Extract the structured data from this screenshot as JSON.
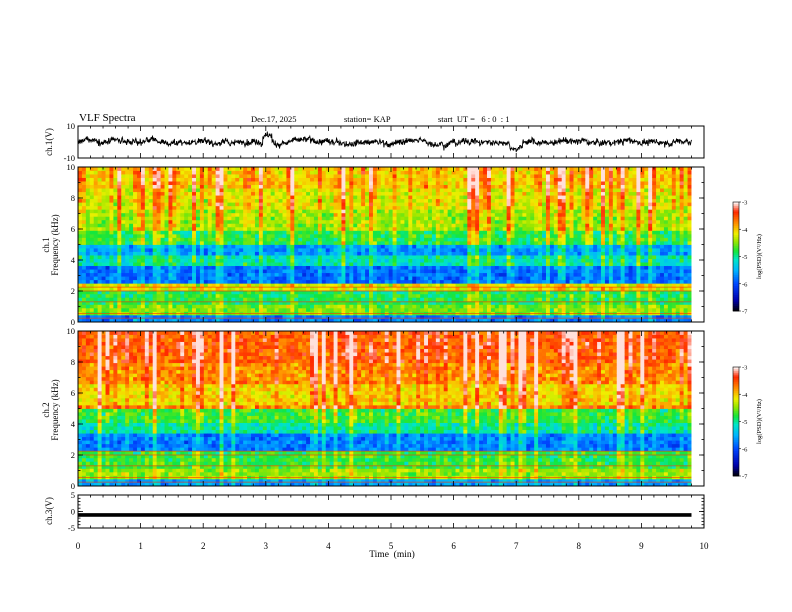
{
  "header": {
    "title": "VLF Spectra",
    "date": "Dec.17, 2025",
    "station": "station= KAP",
    "start": "start  UT =   6 : 0  : 1"
  },
  "colors": {
    "scale": [
      "#000000",
      "#0000aa",
      "#0044ff",
      "#00b4ff",
      "#00e6c8",
      "#10e640",
      "#9ee600",
      "#f0f000",
      "#ff9000",
      "#ff2000",
      "#ffffff"
    ]
  },
  "chart_data": [
    {
      "type": "line",
      "name": "ch1-waveform",
      "ylabel": "ch.1(V)",
      "ylim": [
        -10,
        10
      ],
      "yticks": [
        "10",
        "-10"
      ],
      "xlim": [
        0,
        10
      ],
      "note": "dense noisy voltage trace spanning roughly 0 to 9.8 min"
    },
    {
      "type": "heatmap",
      "name": "ch1-spectrogram",
      "ylabel": "Frequency  (kHz)",
      "channel_label": "ch.1",
      "ylim": [
        0,
        10
      ],
      "yticks": [
        "0",
        "2",
        "4",
        "6",
        "8",
        "10"
      ],
      "xlim": [
        0,
        10
      ],
      "data_end_min": 9.8,
      "colorbar": {
        "label": "log(PSD)(V²/Hz)",
        "range": [
          -7,
          -3
        ],
        "ticks": [
          "-3",
          "-4",
          "-5",
          "-6",
          "-7"
        ]
      },
      "bands": [
        {
          "f": [
            0.0,
            0.5
          ],
          "level": -5.8
        },
        {
          "f": [
            0.5,
            1.1
          ],
          "level": -4.6
        },
        {
          "f": [
            1.1,
            2.0
          ],
          "level": -4.9
        },
        {
          "f": [
            2.0,
            2.6
          ],
          "level": -4.3
        },
        {
          "f": [
            2.6,
            3.6
          ],
          "level": -5.9
        },
        {
          "f": [
            3.6,
            4.3
          ],
          "level": -5.2
        },
        {
          "f": [
            4.3,
            5.0
          ],
          "level": -5.7
        },
        {
          "f": [
            5.0,
            6.0
          ],
          "level": -4.9
        },
        {
          "f": [
            6.0,
            7.2
          ],
          "level": -4.5
        },
        {
          "f": [
            7.2,
            8.6
          ],
          "level": -4.3
        },
        {
          "f": [
            8.6,
            10.0
          ],
          "level": -4.1
        }
      ]
    },
    {
      "type": "heatmap",
      "name": "ch2-spectrogram",
      "ylabel": "Frequency  (kHz)",
      "channel_label": "ch.2",
      "ylim": [
        0,
        10
      ],
      "yticks": [
        "0",
        "2",
        "4",
        "6",
        "8",
        "10"
      ],
      "xlim": [
        0,
        10
      ],
      "data_end_min": 9.8,
      "colorbar": {
        "label": "log(PSD)(V²/Hz)",
        "range": [
          -7,
          -3
        ],
        "ticks": [
          "-3",
          "-4",
          "-5",
          "-6",
          "-7"
        ]
      },
      "bands": [
        {
          "f": [
            0.0,
            0.5
          ],
          "level": -5.6
        },
        {
          "f": [
            0.5,
            1.2
          ],
          "level": -4.5
        },
        {
          "f": [
            1.2,
            2.2
          ],
          "level": -4.8
        },
        {
          "f": [
            2.2,
            3.3
          ],
          "level": -5.8
        },
        {
          "f": [
            3.3,
            4.2
          ],
          "level": -5.1
        },
        {
          "f": [
            4.2,
            5.0
          ],
          "level": -4.8
        },
        {
          "f": [
            5.0,
            5.3
          ],
          "level": -3.8
        },
        {
          "f": [
            5.3,
            6.5
          ],
          "level": -4.1
        },
        {
          "f": [
            6.5,
            8.0
          ],
          "level": -3.8
        },
        {
          "f": [
            8.0,
            10.0
          ],
          "level": -3.6
        }
      ]
    },
    {
      "type": "line",
      "name": "ch3-trace",
      "ylabel": "ch.3(V)",
      "ylim": [
        -5,
        5
      ],
      "yticks": [
        "5",
        "0",
        "-5"
      ],
      "xlim": [
        0,
        10
      ],
      "note": "thick flat trace near -1 V from 0 to 9.8 min"
    }
  ],
  "xaxis": {
    "label": "Time  (min)",
    "ticks": [
      "0",
      "1",
      "2",
      "3",
      "4",
      "5",
      "6",
      "7",
      "8",
      "9",
      "10"
    ]
  }
}
